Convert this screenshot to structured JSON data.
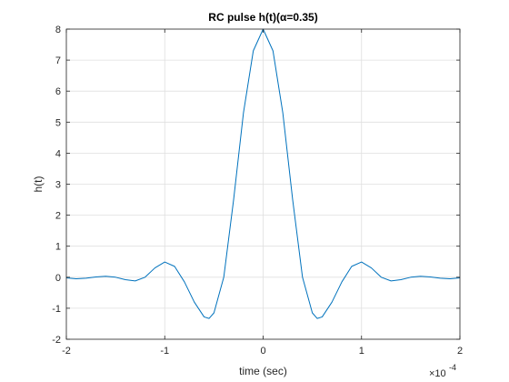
{
  "chart_data": {
    "type": "line",
    "title": "RC pulse h(t)(α=0.35)",
    "xlabel": "time (sec)",
    "ylabel": "h(t)",
    "x_exponent_label": "×10",
    "x_exponent": "-4",
    "xlim": [
      -0.0002,
      0.0002
    ],
    "ylim": [
      -2,
      8
    ],
    "grid": true,
    "x_ticks": [
      -0.0002,
      -0.0001,
      0,
      0.0001,
      0.0002
    ],
    "x_tick_labels": [
      "-2",
      "-1",
      "0",
      "1",
      "2"
    ],
    "y_ticks": [
      -2,
      -1,
      0,
      1,
      2,
      3,
      4,
      5,
      6,
      7,
      8
    ],
    "y_tick_labels": [
      "-2",
      "-1",
      "0",
      "1",
      "2",
      "3",
      "4",
      "5",
      "6",
      "7",
      "8"
    ],
    "series": [
      {
        "color": "#0072BD",
        "x": [
          -0.0002,
          -0.00019,
          -0.00018,
          -0.00017,
          -0.00016,
          -0.00015,
          -0.00014,
          -0.00013,
          -0.00012,
          -0.00011,
          -0.0001,
          -9e-05,
          -8e-05,
          -7e-05,
          -6e-05,
          -5.5e-05,
          -5e-05,
          -4e-05,
          -3e-05,
          -2e-05,
          -1e-05,
          0,
          1e-05,
          2e-05,
          3e-05,
          4e-05,
          5e-05,
          5.5e-05,
          6e-05,
          7e-05,
          8e-05,
          9e-05,
          0.0001,
          0.00011,
          0.00012,
          0.00013,
          0.00014,
          0.00015,
          0.00016,
          0.00017,
          0.00018,
          0.00019,
          0.0002
        ],
        "y": [
          -0.02,
          -0.05,
          -0.03,
          0.01,
          0.03,
          0.0,
          -0.08,
          -0.12,
          0.0,
          0.3,
          0.49,
          0.35,
          -0.15,
          -0.8,
          -1.28,
          -1.33,
          -1.15,
          0.0,
          2.5,
          5.3,
          7.3,
          8.0,
          7.3,
          5.3,
          2.5,
          0.0,
          -1.15,
          -1.33,
          -1.28,
          -0.8,
          -0.15,
          0.35,
          0.49,
          0.3,
          0.0,
          -0.12,
          -0.08,
          0.0,
          0.03,
          0.01,
          -0.03,
          -0.05,
          -0.02
        ]
      }
    ]
  }
}
